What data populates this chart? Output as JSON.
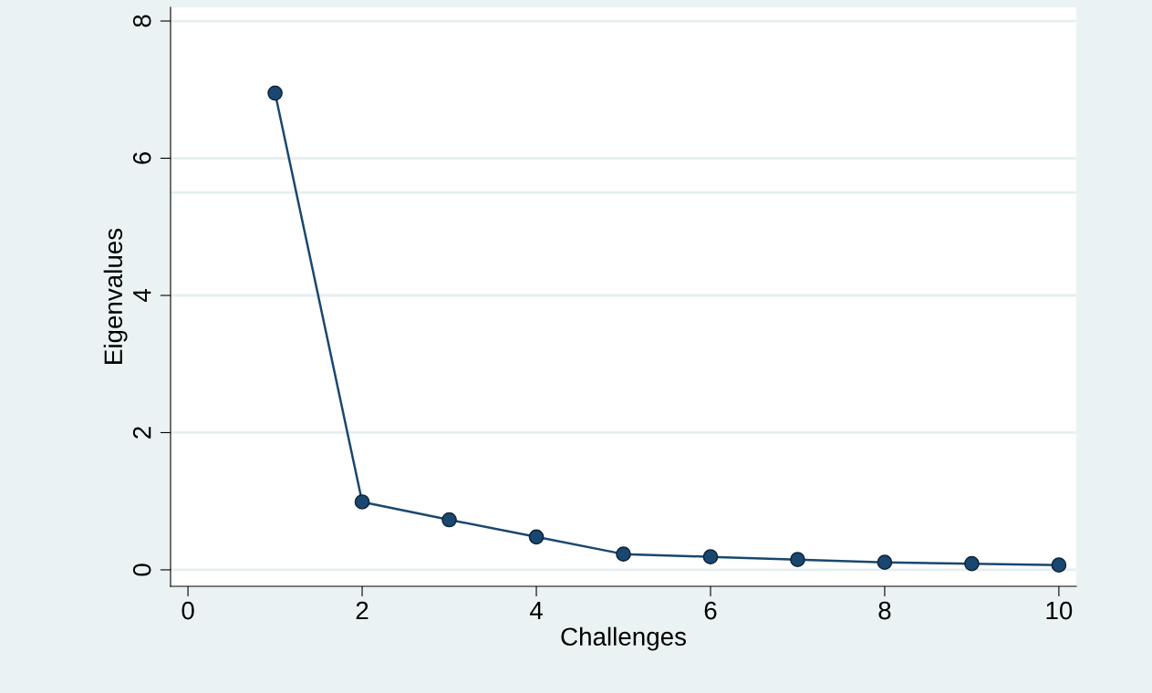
{
  "chart_data": {
    "type": "line",
    "xlabel": "Challenges",
    "ylabel": "Eigenvalues",
    "x": [
      1,
      2,
      3,
      4,
      5,
      6,
      7,
      8,
      9,
      10
    ],
    "series": [
      {
        "color": "#1a476f",
        "values": [
          6.95,
          0.99,
          0.73,
          0.48,
          0.23,
          0.19,
          0.15,
          0.11,
          0.09,
          0.07
        ]
      }
    ],
    "xlim": [
      -0.2,
      10.2
    ],
    "ylim": [
      -0.24,
      8.2
    ],
    "xticks": [
      0,
      2,
      4,
      6,
      8,
      10
    ],
    "yticks": [
      0,
      2,
      4,
      6,
      8
    ],
    "ref_lines": [
      {
        "axis": "y",
        "value": 5.5,
        "label": null,
        "color": "#e6eeef"
      }
    ],
    "grid": "y",
    "marker": "circle",
    "line_style": "solid"
  }
}
